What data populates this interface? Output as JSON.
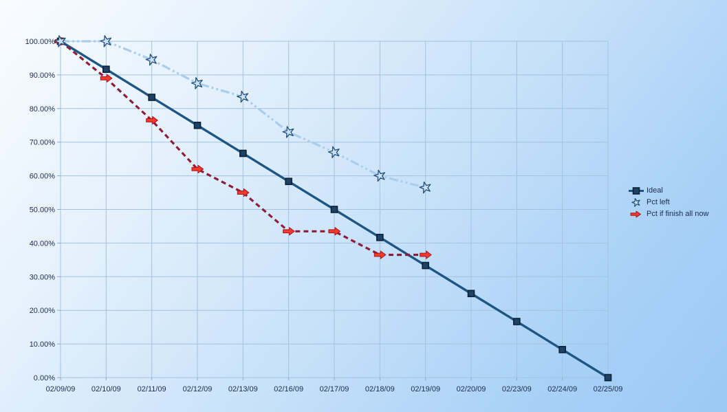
{
  "chart_data": {
    "type": "line",
    "title": "",
    "xlabel": "",
    "ylabel": "",
    "ylim": [
      0,
      100
    ],
    "grid": true,
    "legend_position": "right",
    "x_categories": [
      "02/09/09",
      "02/10/09",
      "02/11/09",
      "02/12/09",
      "02/13/09",
      "02/16/09",
      "02/17/09",
      "02/18/09",
      "02/19/09",
      "02/20/09",
      "02/23/09",
      "02/24/09",
      "02/25/09"
    ],
    "y_tick_labels": [
      "100.00%",
      "90.00%",
      "80.00%",
      "70.00%",
      "60.00%",
      "50.00%",
      "40.00%",
      "30.00%",
      "20.00%",
      "10.00%",
      "0.00%"
    ],
    "y_tick_values": [
      100,
      90,
      80,
      70,
      60,
      50,
      40,
      30,
      20,
      10,
      0
    ],
    "grid_color": "#a3c2e0",
    "tick_color": "#87a9cc",
    "text_color": "#1b2b4d",
    "series": [
      {
        "name": "Ideal",
        "line_color": "#1d5685",
        "line_style": "solid",
        "line_width": 3.4,
        "marker": "square",
        "marker_fill": "#1d4266",
        "marker_stroke": "#0b2137",
        "values": [
          100,
          91.67,
          83.33,
          75,
          66.67,
          58.33,
          50,
          41.67,
          33.33,
          25,
          16.67,
          8.33,
          0
        ]
      },
      {
        "name": "Pct left",
        "line_color": "#a9cdec",
        "line_style": "dash-dot-dot",
        "line_width": 3.2,
        "marker": "star",
        "marker_fill": "#cce0f5",
        "marker_stroke": "#1f4e79",
        "values": [
          100,
          100,
          94.5,
          87.5,
          83.5,
          73,
          67,
          60,
          56.5
        ]
      },
      {
        "name": "Pct if finish all now",
        "line_color": "#8b1f3b",
        "line_style": "dashed",
        "line_width": 3.2,
        "marker": "arrow",
        "marker_fill": "#f23a28",
        "marker_stroke": "#a81424",
        "values": [
          100,
          89,
          76.5,
          62,
          55,
          43.5,
          43.5,
          36.5,
          36.5
        ]
      }
    ]
  },
  "legend": {
    "items": [
      {
        "label": "Ideal"
      },
      {
        "label": "Pct left"
      },
      {
        "label": "Pct if finish all now"
      }
    ]
  }
}
